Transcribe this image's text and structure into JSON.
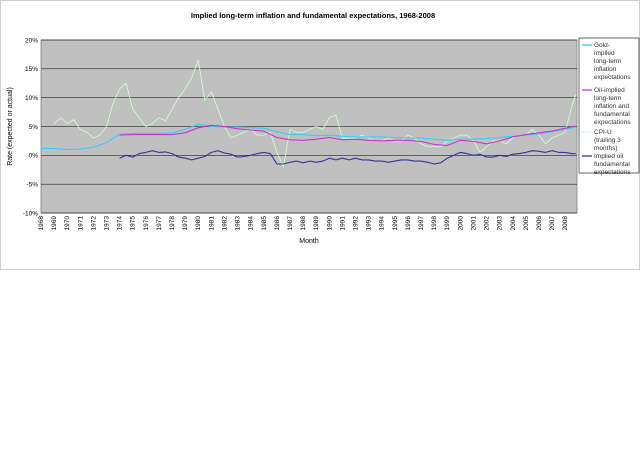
{
  "chart_data": {
    "type": "line",
    "title": "Implied long-term inflation and fundamental expectations, 1968-2008",
    "xlabel": "Month",
    "ylabel": "Rate (expected or actual)",
    "ylim": [
      -10,
      20
    ],
    "yticks": [
      "-10%",
      "-5%",
      "0%",
      "5%",
      "10%",
      "15%",
      "20%"
    ],
    "ytick_values": [
      -10,
      -5,
      0,
      5,
      10,
      15,
      20
    ],
    "xlim": [
      1968,
      2008.9
    ],
    "xtick_labels": [
      "1968",
      "1969",
      "1970",
      "1971",
      "1972",
      "1973",
      "1974",
      "1975",
      "1976",
      "1977",
      "1978",
      "1979",
      "1980",
      "1981",
      "1982",
      "1983",
      "1984",
      "1985",
      "1986",
      "1987",
      "1988",
      "1989",
      "1990",
      "1991",
      "1992",
      "1993",
      "1994",
      "1995",
      "1996",
      "1997",
      "1998",
      "1999",
      "2000",
      "2001",
      "2002",
      "2003",
      "2004",
      "2005",
      "2006",
      "2007",
      "2008"
    ],
    "grid": "horizontal",
    "background": "#c0c0c0",
    "legend_position": "right",
    "series": [
      {
        "name": "Gold-implied long-term inflation expectations",
        "color": "#33ccff",
        "x": [
          1968,
          1969,
          1970,
          1971,
          1972,
          1973,
          1974,
          1975,
          1976,
          1977,
          1978,
          1979,
          1980,
          1981,
          1982,
          1983,
          1984,
          1985,
          1986,
          1987,
          1988,
          1989,
          1990,
          1991,
          1992,
          1993,
          1994,
          1995,
          1996,
          1997,
          1998,
          1999,
          2000,
          2001,
          2002,
          2003,
          2004,
          2005,
          2006,
          2007,
          2008.8
        ],
        "values": [
          1.2,
          1.2,
          1.0,
          1.1,
          1.4,
          2.2,
          3.7,
          3.8,
          3.8,
          3.8,
          3.9,
          4.5,
          5.4,
          5.0,
          4.9,
          4.9,
          4.8,
          4.7,
          4.1,
          3.6,
          3.6,
          3.4,
          3.5,
          3.3,
          3.2,
          3.2,
          3.2,
          3.1,
          3.0,
          3.0,
          2.8,
          2.6,
          2.8,
          2.8,
          2.9,
          3.1,
          3.3,
          3.5,
          3.7,
          4.1,
          4.9
        ]
      },
      {
        "name": "Oil-implied long-term inflation and fundamental expectations",
        "color": "#cc33cc",
        "x": [
          1974,
          1975,
          1976,
          1977,
          1978,
          1979,
          1980,
          1981,
          1982,
          1983,
          1984,
          1985,
          1986,
          1987,
          1988,
          1989,
          1990,
          1991,
          1992,
          1993,
          1994,
          1995,
          1996,
          1997,
          1998,
          1999,
          2000,
          2001,
          2002,
          2003,
          2004,
          2005,
          2006,
          2007,
          2008.8
        ],
        "values": [
          3.5,
          3.6,
          3.6,
          3.6,
          3.6,
          3.9,
          4.8,
          5.2,
          5.0,
          4.6,
          4.4,
          4.2,
          3.1,
          2.7,
          2.6,
          2.8,
          3.1,
          2.7,
          2.8,
          2.6,
          2.5,
          2.6,
          2.6,
          2.4,
          1.9,
          1.7,
          2.6,
          2.4,
          2.0,
          2.5,
          3.2,
          3.6,
          3.9,
          4.2,
          5.1
        ]
      },
      {
        "name": "CPI-U (trailing 3 months)",
        "color": "#ccffcc",
        "x": [
          1969,
          1969.5,
          1970,
          1970.5,
          1971,
          1971.5,
          1972,
          1972.5,
          1973,
          1973.5,
          1974,
          1974.5,
          1975,
          1975.5,
          1976,
          1976.5,
          1977,
          1977.5,
          1978,
          1978.5,
          1979,
          1979.5,
          1980,
          1980.5,
          1981,
          1981.5,
          1982,
          1982.5,
          1983,
          1983.5,
          1984,
          1984.5,
          1985,
          1985.5,
          1986,
          1986.5,
          1987,
          1987.5,
          1988,
          1988.5,
          1989,
          1989.5,
          1990,
          1990.5,
          1991,
          1991.5,
          1992,
          1992.5,
          1993,
          1993.5,
          1994,
          1994.5,
          1995,
          1995.5,
          1996,
          1996.5,
          1997,
          1997.5,
          1998,
          1998.5,
          1999,
          1999.5,
          2000,
          2000.5,
          2001,
          2001.5,
          2002,
          2002.5,
          2003,
          2003.5,
          2004,
          2004.5,
          2005,
          2005.5,
          2006,
          2006.5,
          2007,
          2007.5,
          2008,
          2008.5,
          2008.8
        ],
        "values": [
          5.5,
          6.5,
          5.5,
          6.2,
          4.5,
          4.0,
          3.0,
          3.5,
          5.0,
          9.0,
          11.5,
          12.5,
          8.0,
          6.5,
          5.0,
          5.5,
          6.5,
          6.0,
          8.0,
          10.0,
          11.5,
          13.5,
          16.5,
          9.5,
          11.0,
          8.0,
          5.0,
          3.0,
          3.5,
          4.0,
          4.5,
          3.5,
          3.5,
          4.0,
          0.5,
          -2.0,
          4.5,
          4.0,
          4.0,
          4.5,
          5.0,
          4.5,
          6.5,
          7.0,
          3.0,
          3.0,
          3.0,
          3.5,
          3.0,
          2.5,
          2.5,
          3.0,
          2.5,
          2.5,
          3.5,
          3.0,
          2.0,
          1.5,
          1.5,
          1.5,
          2.5,
          3.0,
          3.5,
          3.5,
          2.5,
          0.5,
          1.5,
          2.5,
          2.5,
          2.0,
          3.0,
          3.5,
          3.5,
          4.5,
          3.5,
          2.0,
          3.0,
          3.5,
          4.0,
          8.5,
          10.5
        ]
      },
      {
        "name": "Implied oil fundamental expectations",
        "color": "#333399",
        "x": [
          1974,
          1974.5,
          1975,
          1975.5,
          1976,
          1976.5,
          1977,
          1977.5,
          1978,
          1978.5,
          1979,
          1979.5,
          1980,
          1980.5,
          1981,
          1981.5,
          1982,
          1982.5,
          1983,
          1983.5,
          1984,
          1984.5,
          1985,
          1985.5,
          1986,
          1986.5,
          1987,
          1987.5,
          1988,
          1988.5,
          1989,
          1989.5,
          1990,
          1990.5,
          1991,
          1991.5,
          1992,
          1992.5,
          1993,
          1993.5,
          1994,
          1994.5,
          1995,
          1995.5,
          1996,
          1996.5,
          1997,
          1997.5,
          1998,
          1998.5,
          1999,
          1999.5,
          2000,
          2000.5,
          2001,
          2001.5,
          2002,
          2002.5,
          2003,
          2003.5,
          2004,
          2004.5,
          2005,
          2005.5,
          2006,
          2006.5,
          2007,
          2007.5,
          2008,
          2008.5,
          2008.8
        ],
        "values": [
          -0.5,
          0.0,
          -0.3,
          0.3,
          0.5,
          0.8,
          0.5,
          0.6,
          0.3,
          -0.3,
          -0.5,
          -0.8,
          -0.5,
          -0.2,
          0.5,
          0.8,
          0.4,
          0.2,
          -0.3,
          -0.2,
          0.0,
          0.3,
          0.5,
          0.3,
          -1.5,
          -1.5,
          -1.2,
          -1.0,
          -1.3,
          -1.0,
          -1.2,
          -1.0,
          -0.5,
          -0.8,
          -0.5,
          -0.8,
          -0.5,
          -0.8,
          -0.8,
          -1.0,
          -1.0,
          -1.2,
          -1.0,
          -0.8,
          -0.8,
          -1.0,
          -1.0,
          -1.2,
          -1.5,
          -1.3,
          -0.5,
          0.0,
          0.5,
          0.3,
          0.0,
          0.2,
          -0.3,
          -0.3,
          0.0,
          -0.2,
          0.2,
          0.3,
          0.5,
          0.8,
          0.7,
          0.5,
          0.8,
          0.5,
          0.5,
          0.3,
          0.3
        ]
      }
    ]
  }
}
